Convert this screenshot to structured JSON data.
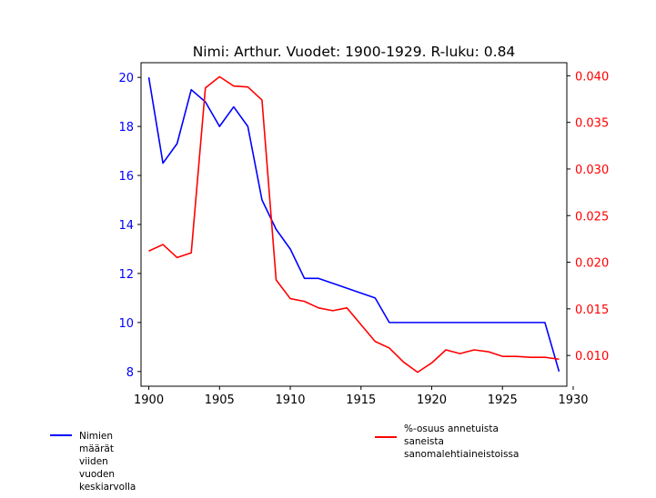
{
  "chart_data": {
    "type": "line",
    "title": "Nimi: Arthur. Vuodet: 1900-1929. R-luku: 0.84",
    "xlabel": "",
    "ylabel_left": "",
    "ylabel_right": "",
    "xlim": [
      1899.45,
      1929.55
    ],
    "ylim_left": [
      7.4,
      20.6
    ],
    "ylim_right": [
      0.0067,
      0.0414
    ],
    "x_ticks": [
      1900,
      1905,
      1910,
      1915,
      1920,
      1925,
      1930
    ],
    "y_ticks_left": [
      8,
      10,
      12,
      14,
      16,
      18,
      20
    ],
    "y_ticks_right": [
      "0.010",
      "0.015",
      "0.020",
      "0.025",
      "0.030",
      "0.035",
      "0.040"
    ],
    "grid": false,
    "legend_position": "bottom",
    "x": [
      1900,
      1901,
      1902,
      1903,
      1904,
      1905,
      1906,
      1907,
      1908,
      1909,
      1910,
      1911,
      1912,
      1913,
      1914,
      1915,
      1916,
      1917,
      1918,
      1919,
      1920,
      1921,
      1922,
      1923,
      1924,
      1925,
      1926,
      1927,
      1928,
      1929
    ],
    "series": [
      {
        "name": "Nimien määrät viiden vuoden keskiarvolla",
        "axis": "left",
        "color": "#0000ff",
        "values": [
          20.0,
          16.5,
          17.3,
          19.5,
          19.0,
          18.0,
          18.8,
          18.0,
          15.0,
          13.8,
          13.0,
          11.8,
          11.8,
          11.6,
          11.4,
          11.2,
          11.0,
          10.0,
          10.0,
          10.0,
          10.0,
          10.0,
          10.0,
          10.0,
          10.0,
          10.0,
          10.0,
          10.0,
          10.0,
          8.0
        ]
      },
      {
        "name": "%-osuus annetuista saneista\n sanomalehtiaineistoissa",
        "axis": "right",
        "color": "#ff0000",
        "values": [
          0.0212,
          0.0219,
          0.0205,
          0.021,
          0.0387,
          0.0399,
          0.0389,
          0.0388,
          0.0374,
          0.0181,
          0.0161,
          0.0158,
          0.0151,
          0.0148,
          0.0151,
          0.0133,
          0.0115,
          0.0108,
          0.0093,
          0.0082,
          0.0092,
          0.0106,
          0.0102,
          0.0106,
          0.0104,
          0.0099,
          0.0099,
          0.0098,
          0.0098,
          0.0096
        ]
      }
    ]
  }
}
